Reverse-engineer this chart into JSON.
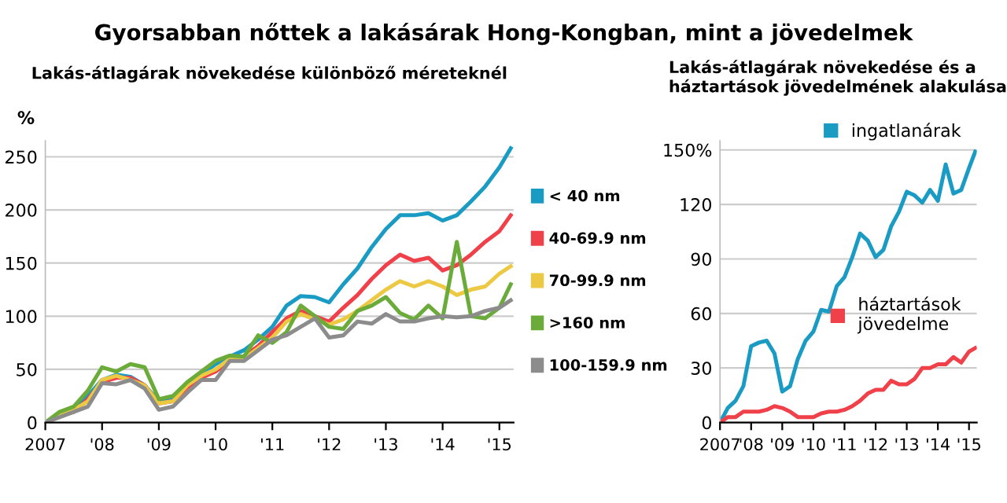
{
  "chart_data": [
    {
      "type": "line",
      "title": "Gyorsabban nőttek a lakásárak Hong-Kongban, mint a jövedelmek",
      "subtitle": "Lakás-átlagárak növekedése különböző méreteknél",
      "ylabel": "%",
      "x": [
        2007.0,
        2007.25,
        2007.5,
        2007.75,
        2008.0,
        2008.25,
        2008.5,
        2008.75,
        2009.0,
        2009.25,
        2009.5,
        2009.75,
        2010.0,
        2010.25,
        2010.5,
        2010.75,
        2011.0,
        2011.25,
        2011.5,
        2011.75,
        2012.0,
        2012.25,
        2012.5,
        2012.75,
        2013.0,
        2013.25,
        2013.5,
        2013.75,
        2014.0,
        2014.25,
        2014.5,
        2014.75,
        2015.0,
        2015.2
      ],
      "series": [
        {
          "name": "< 40 nm",
          "color": "#1a9bc4",
          "values": [
            0,
            8,
            14,
            25,
            40,
            45,
            43,
            35,
            20,
            22,
            35,
            45,
            55,
            62,
            68,
            78,
            90,
            110,
            119,
            118,
            113,
            130,
            145,
            165,
            182,
            195,
            195,
            197,
            190,
            195,
            208,
            222,
            240,
            258
          ]
        },
        {
          "name": "40-69.9 nm",
          "color": "#f0414a",
          "values": [
            0,
            6,
            10,
            22,
            38,
            42,
            42,
            35,
            18,
            20,
            33,
            42,
            48,
            58,
            62,
            72,
            85,
            98,
            105,
            100,
            95,
            108,
            120,
            135,
            148,
            158,
            152,
            155,
            143,
            148,
            158,
            170,
            180,
            195
          ]
        },
        {
          "name": "70-99.9 nm",
          "color": "#ecc843",
          "values": [
            0,
            7,
            12,
            20,
            40,
            44,
            40,
            35,
            18,
            20,
            35,
            44,
            50,
            60,
            60,
            70,
            80,
            95,
            102,
            97,
            92,
            97,
            105,
            115,
            125,
            133,
            128,
            133,
            128,
            120,
            125,
            128,
            140,
            147
          ]
        },
        {
          "name": ">160 nm",
          "color": "#6aab3a",
          "values": [
            0,
            10,
            15,
            30,
            52,
            48,
            55,
            52,
            22,
            25,
            38,
            48,
            58,
            63,
            62,
            82,
            75,
            85,
            110,
            100,
            90,
            88,
            105,
            110,
            118,
            103,
            97,
            110,
            98,
            170,
            100,
            98,
            108,
            130
          ]
        },
        {
          "name": "100-159.9 nm",
          "color": "#8c8c8c",
          "values": [
            0,
            5,
            10,
            15,
            37,
            36,
            40,
            32,
            12,
            15,
            28,
            40,
            40,
            58,
            58,
            68,
            78,
            82,
            90,
            98,
            80,
            82,
            95,
            93,
            102,
            95,
            95,
            98,
            100,
            99,
            100,
            105,
            108,
            115
          ]
        }
      ],
      "xlim": [
        2007,
        2015.25
      ],
      "xticks": [
        {
          "value": 2007,
          "label": "2007"
        },
        {
          "value": 2008,
          "label": "'08"
        },
        {
          "value": 2009,
          "label": "'09"
        },
        {
          "value": 2010,
          "label": "'10"
        },
        {
          "value": 2011,
          "label": "'11"
        },
        {
          "value": 2012,
          "label": "'12"
        },
        {
          "value": 2013,
          "label": "'13"
        },
        {
          "value": 2014,
          "label": "'14"
        },
        {
          "value": 2015,
          "label": "'15"
        }
      ],
      "ylim": [
        0,
        265
      ],
      "yticks": [
        0,
        50,
        100,
        150,
        200,
        250
      ],
      "grid": "y",
      "legend": "right"
    },
    {
      "type": "line",
      "title": "Lakás-átlagárak növekedése és a\nháztartások jövedelmének alakulása",
      "x": [
        2007.0,
        2007.25,
        2007.5,
        2007.75,
        2008.0,
        2008.25,
        2008.5,
        2008.75,
        2009.0,
        2009.25,
        2009.5,
        2009.75,
        2010.0,
        2010.25,
        2010.5,
        2010.75,
        2011.0,
        2011.25,
        2011.5,
        2011.75,
        2012.0,
        2012.25,
        2012.5,
        2012.75,
        2013.0,
        2013.25,
        2013.5,
        2013.75,
        2014.0,
        2014.25,
        2014.5,
        2014.75,
        2015.0,
        2015.2
      ],
      "series": [
        {
          "name": "ingatlanárak",
          "color": "#1a9bc4",
          "values": [
            0,
            8,
            12,
            20,
            42,
            44,
            45,
            38,
            17,
            20,
            35,
            45,
            50,
            62,
            61,
            75,
            80,
            91,
            104,
            100,
            91,
            95,
            108,
            116,
            127,
            125,
            121,
            128,
            122,
            142,
            126,
            128,
            140,
            149
          ]
        },
        {
          "name": "háztartások\njövedelme",
          "color": "#f0414a",
          "values": [
            0,
            3,
            3,
            6,
            6,
            6,
            7,
            9,
            8,
            6,
            3,
            3,
            3,
            5,
            6,
            6,
            7,
            9,
            12,
            16,
            18,
            18,
            23,
            21,
            21,
            24,
            30,
            30,
            32,
            32,
            36,
            33,
            39,
            41
          ]
        }
      ],
      "xlim": [
        2007,
        2015.25
      ],
      "xticks": [
        {
          "value": 2007,
          "label": "2007"
        },
        {
          "value": 2008,
          "label": "'08"
        },
        {
          "value": 2009,
          "label": "'09"
        },
        {
          "value": 2010,
          "label": "'10"
        },
        {
          "value": 2011,
          "label": "'11"
        },
        {
          "value": 2012,
          "label": "'12"
        },
        {
          "value": 2013,
          "label": "'13"
        },
        {
          "value": 2014,
          "label": "'14"
        },
        {
          "value": 2015,
          "label": "'15"
        }
      ],
      "ylim": [
        0,
        155
      ],
      "yticks": [
        0,
        30,
        60,
        90,
        120,
        {
          "value": 150,
          "label": "150%"
        }
      ],
      "grid": "y",
      "legend": "top right"
    }
  ]
}
